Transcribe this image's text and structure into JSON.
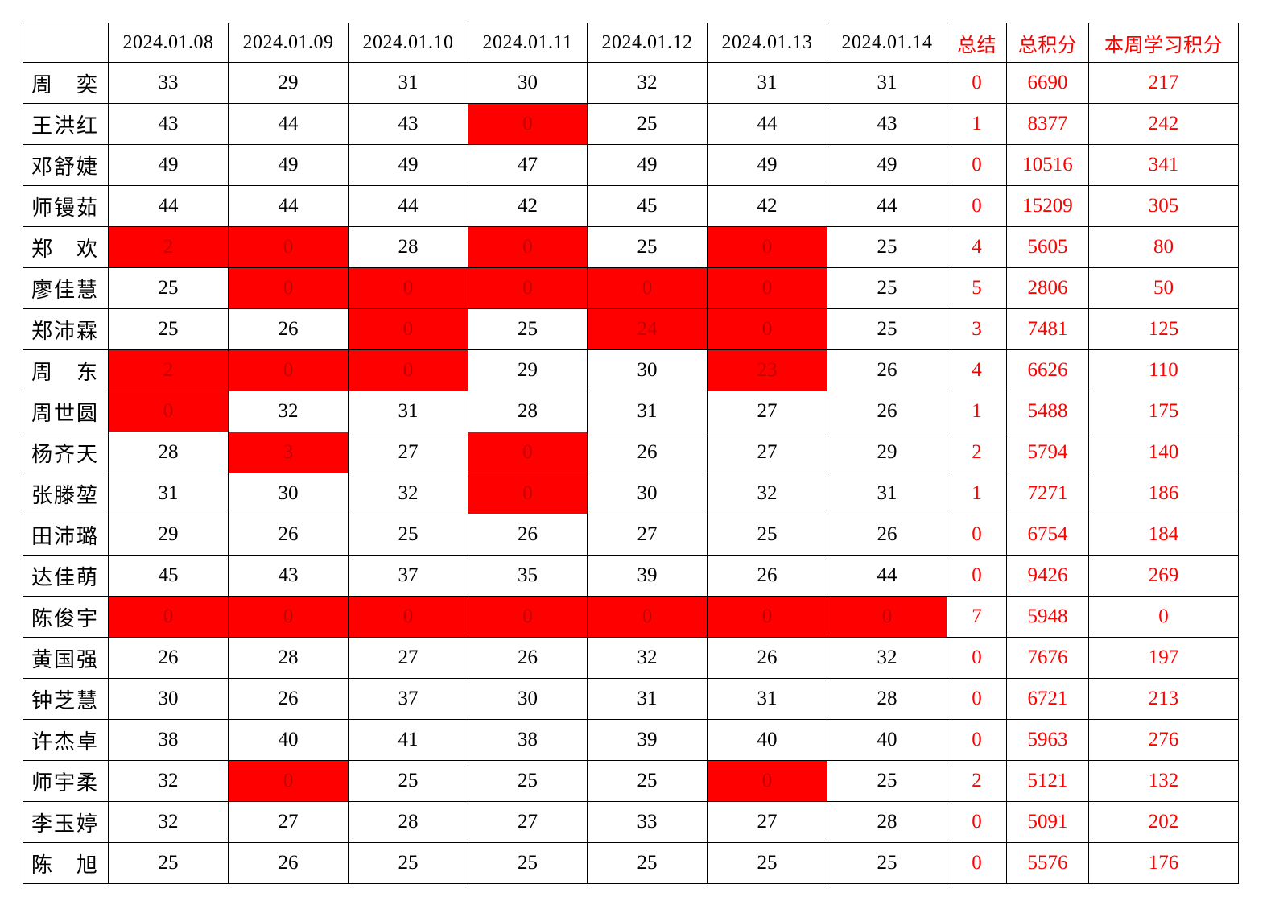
{
  "table": {
    "highlight_color": "#ff0000",
    "headers": [
      "2024.01.08",
      "2024.01.09",
      "2024.01.10",
      "2024.01.11",
      "2024.01.12",
      "2024.01.13",
      "2024.01.14",
      "总结",
      "总积分",
      "本周学习积分"
    ],
    "rows": [
      {
        "name": "周　奕",
        "scores": [
          33,
          29,
          31,
          30,
          32,
          31,
          31
        ],
        "flagged": [
          false,
          false,
          false,
          false,
          false,
          false,
          false
        ],
        "summary": 0,
        "total": 6690,
        "weekly": 217
      },
      {
        "name": "王洪红",
        "scores": [
          43,
          44,
          43,
          0,
          25,
          44,
          43
        ],
        "flagged": [
          false,
          false,
          false,
          true,
          false,
          false,
          false
        ],
        "summary": 1,
        "total": 8377,
        "weekly": 242
      },
      {
        "name": "邓舒婕",
        "scores": [
          49,
          49,
          49,
          47,
          49,
          49,
          49
        ],
        "flagged": [
          false,
          false,
          false,
          false,
          false,
          false,
          false
        ],
        "summary": 0,
        "total": 10516,
        "weekly": 341
      },
      {
        "name": "师镘茹",
        "scores": [
          44,
          44,
          44,
          42,
          45,
          42,
          44
        ],
        "flagged": [
          false,
          false,
          false,
          false,
          false,
          false,
          false
        ],
        "summary": 0,
        "total": 15209,
        "weekly": 305
      },
      {
        "name": "郑　欢",
        "scores": [
          2,
          0,
          28,
          0,
          25,
          0,
          25
        ],
        "flagged": [
          true,
          true,
          false,
          true,
          false,
          true,
          false
        ],
        "summary": 4,
        "total": 5605,
        "weekly": 80
      },
      {
        "name": "廖佳慧",
        "scores": [
          25,
          0,
          0,
          0,
          0,
          0,
          25
        ],
        "flagged": [
          false,
          true,
          true,
          true,
          true,
          true,
          false
        ],
        "summary": 5,
        "total": 2806,
        "weekly": 50
      },
      {
        "name": "郑沛霖",
        "scores": [
          25,
          26,
          0,
          25,
          24,
          0,
          25
        ],
        "flagged": [
          false,
          false,
          true,
          false,
          true,
          true,
          false
        ],
        "summary": 3,
        "total": 7481,
        "weekly": 125
      },
      {
        "name": "周　东",
        "scores": [
          2,
          0,
          0,
          29,
          30,
          23,
          26
        ],
        "flagged": [
          true,
          true,
          true,
          false,
          false,
          true,
          false
        ],
        "summary": 4,
        "total": 6626,
        "weekly": 110
      },
      {
        "name": "周世圆",
        "scores": [
          0,
          32,
          31,
          28,
          31,
          27,
          26
        ],
        "flagged": [
          true,
          false,
          false,
          false,
          false,
          false,
          false
        ],
        "summary": 1,
        "total": 5488,
        "weekly": 175
      },
      {
        "name": "杨齐天",
        "scores": [
          28,
          3,
          27,
          0,
          26,
          27,
          29
        ],
        "flagged": [
          false,
          true,
          false,
          true,
          false,
          false,
          false
        ],
        "summary": 2,
        "total": 5794,
        "weekly": 140
      },
      {
        "name": "张滕堃",
        "scores": [
          31,
          30,
          32,
          0,
          30,
          32,
          31
        ],
        "flagged": [
          false,
          false,
          false,
          true,
          false,
          false,
          false
        ],
        "summary": 1,
        "total": 7271,
        "weekly": 186
      },
      {
        "name": "田沛璐",
        "scores": [
          29,
          26,
          25,
          26,
          27,
          25,
          26
        ],
        "flagged": [
          false,
          false,
          false,
          false,
          false,
          false,
          false
        ],
        "summary": 0,
        "total": 6754,
        "weekly": 184
      },
      {
        "name": "达佳萌",
        "scores": [
          45,
          43,
          37,
          35,
          39,
          26,
          44
        ],
        "flagged": [
          false,
          false,
          false,
          false,
          false,
          false,
          false
        ],
        "summary": 0,
        "total": 9426,
        "weekly": 269
      },
      {
        "name": "陈俊宇",
        "scores": [
          0,
          0,
          0,
          0,
          0,
          0,
          0
        ],
        "flagged": [
          true,
          true,
          true,
          true,
          true,
          true,
          true
        ],
        "summary": 7,
        "total": 5948,
        "weekly": 0
      },
      {
        "name": "黄国强",
        "scores": [
          26,
          28,
          27,
          26,
          32,
          26,
          32
        ],
        "flagged": [
          false,
          false,
          false,
          false,
          false,
          false,
          false
        ],
        "summary": 0,
        "total": 7676,
        "weekly": 197
      },
      {
        "name": "钟芝慧",
        "scores": [
          30,
          26,
          37,
          30,
          31,
          31,
          28
        ],
        "flagged": [
          false,
          false,
          false,
          false,
          false,
          false,
          false
        ],
        "summary": 0,
        "total": 6721,
        "weekly": 213
      },
      {
        "name": "许杰卓",
        "scores": [
          38,
          40,
          41,
          38,
          39,
          40,
          40
        ],
        "flagged": [
          false,
          false,
          false,
          false,
          false,
          false,
          false
        ],
        "summary": 0,
        "total": 5963,
        "weekly": 276
      },
      {
        "name": "师宇柔",
        "scores": [
          32,
          0,
          25,
          25,
          25,
          0,
          25
        ],
        "flagged": [
          false,
          true,
          false,
          false,
          false,
          true,
          false
        ],
        "summary": 2,
        "total": 5121,
        "weekly": 132
      },
      {
        "name": "李玉婷",
        "scores": [
          32,
          27,
          28,
          27,
          33,
          27,
          28
        ],
        "flagged": [
          false,
          false,
          false,
          false,
          false,
          false,
          false
        ],
        "summary": 0,
        "total": 5091,
        "weekly": 202
      },
      {
        "name": "陈　旭",
        "scores": [
          25,
          26,
          25,
          25,
          25,
          25,
          25
        ],
        "flagged": [
          false,
          false,
          false,
          false,
          false,
          false,
          false
        ],
        "summary": 0,
        "total": 5576,
        "weekly": 176
      }
    ]
  }
}
